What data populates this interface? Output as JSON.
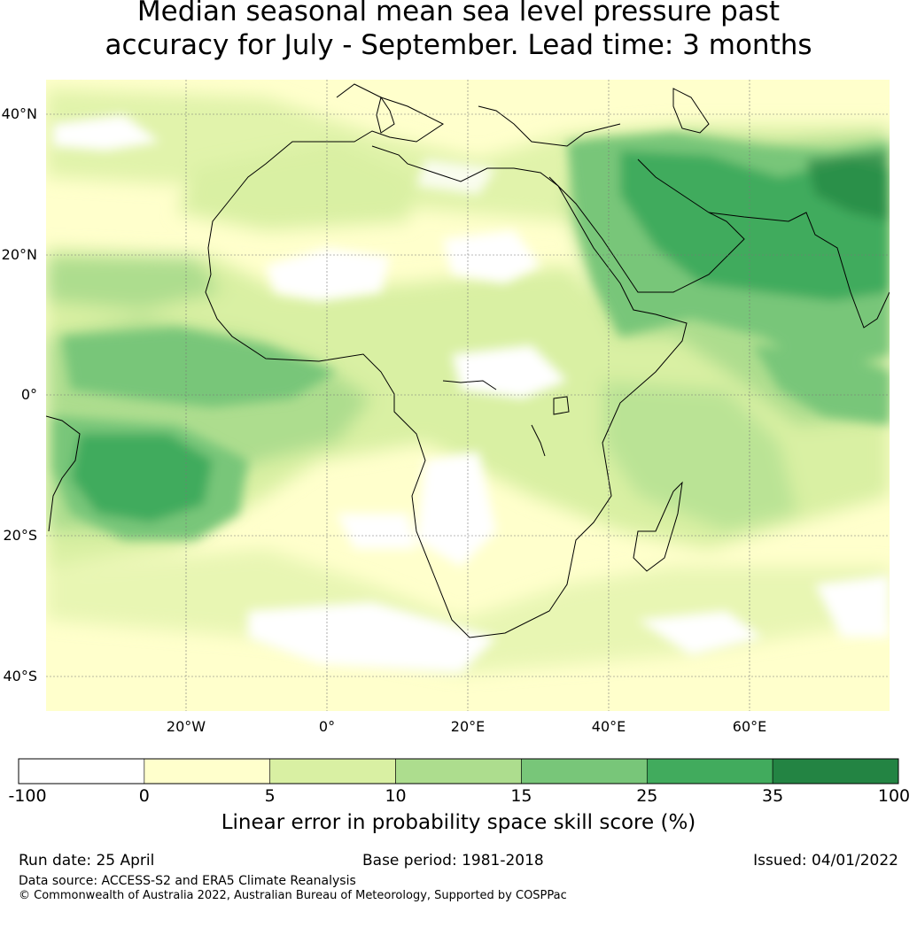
{
  "title_line1": "Median seasonal mean sea level pressure past",
  "title_line2": "accuracy for July - September. Lead time: 3 months",
  "lat_labels": [
    "40°N",
    "20°N",
    "0°",
    "20°S",
    "40°S"
  ],
  "lon_labels": [
    "20°W",
    "0°",
    "20°E",
    "40°E",
    "60°E"
  ],
  "colorbar": {
    "ticks": [
      "-100",
      "0",
      "5",
      "10",
      "15",
      "25",
      "35",
      "100"
    ],
    "colors": [
      "#ffffff",
      "#ffffcc",
      "#d9f0a3",
      "#addd8e",
      "#78c679",
      "#41ab5d",
      "#238443"
    ],
    "label": "Linear error in probability space skill score (%)"
  },
  "footer": {
    "run_date": "Run date: 25 April",
    "base_period": "Base period: 1981-2018",
    "issued": "Issued: 04/01/2022",
    "data_source": "Data source: ACCESS-S2 and ERA5 Climate Reanalysis",
    "copyright": "© Commonwealth of Australia 2022, Australian Bureau of Meteorology, Supported by COSPPac"
  },
  "map": {
    "extent": {
      "lon": [
        -40,
        80
      ],
      "lat": [
        -45,
        45
      ]
    },
    "gridlines": {
      "lon": [
        -20,
        0,
        20,
        40,
        60
      ],
      "lat": [
        40,
        20,
        0,
        -20,
        -40
      ]
    }
  }
}
